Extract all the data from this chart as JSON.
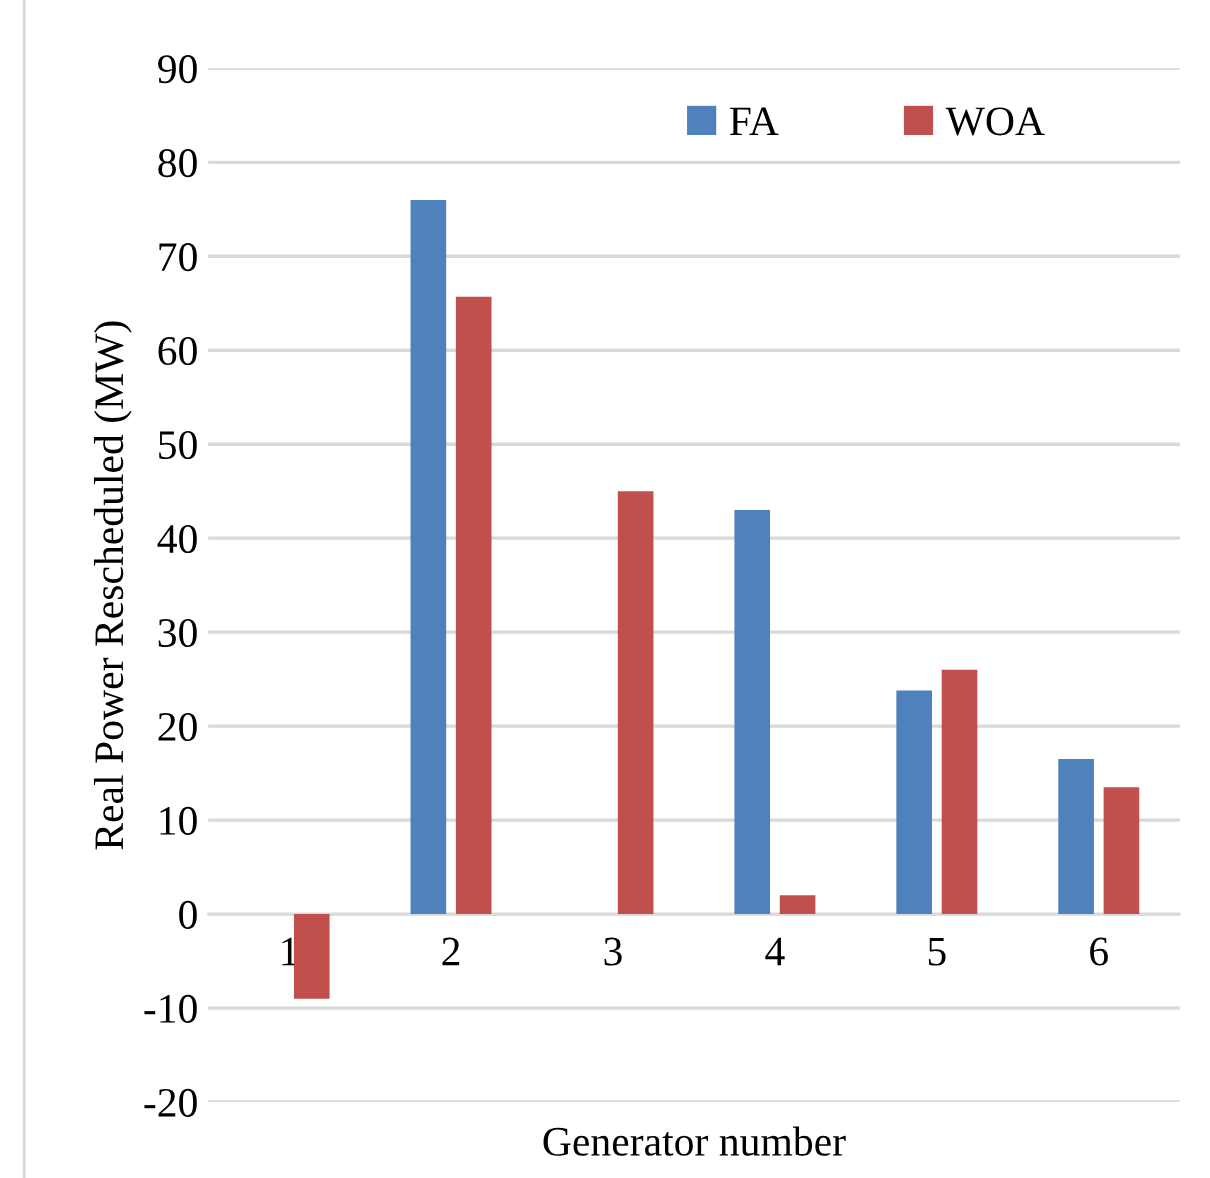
{
  "chart_data": {
    "type": "bar",
    "xlabel": "Generator number",
    "ylabel": "Real Power Rescheduled (MW)",
    "categories": [
      "1",
      "2",
      "3",
      "4",
      "5",
      "6"
    ],
    "series": [
      {
        "name": "FA",
        "color": "#4f81bd",
        "values": [
          0,
          76,
          0,
          43,
          23.8,
          16.5
        ]
      },
      {
        "name": "WOA",
        "color": "#c0504d",
        "values": [
          -9,
          65.7,
          45,
          2,
          26,
          13.5
        ]
      }
    ],
    "ylim": [
      -20,
      90
    ],
    "yticks": [
      -20,
      -10,
      0,
      10,
      20,
      30,
      40,
      50,
      60,
      70,
      80,
      90
    ],
    "grid": "y",
    "legend": "top right"
  }
}
